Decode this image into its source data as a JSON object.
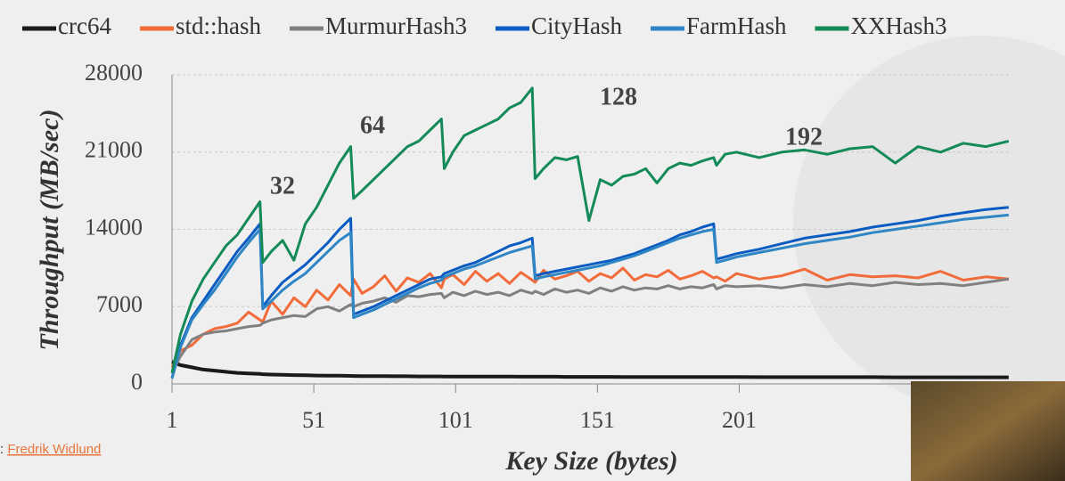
{
  "chart_data": {
    "type": "line",
    "x_label": "Key Size (bytes)",
    "y_label": "Throughput (MB/sec)",
    "xlim": [
      1,
      297
    ],
    "xticks": [
      1,
      51,
      101,
      151,
      201
    ],
    "ylim": [
      0,
      28000
    ],
    "yticks": [
      0,
      7000,
      14000,
      21000,
      28000
    ],
    "grid": true,
    "legend": "top",
    "annotations": [
      "32",
      "64",
      "128",
      "192"
    ],
    "x": [
      1,
      4,
      8,
      12,
      16,
      20,
      24,
      28,
      32,
      33,
      36,
      40,
      44,
      48,
      52,
      56,
      60,
      64,
      65,
      68,
      72,
      76,
      80,
      84,
      88,
      92,
      96,
      97,
      100,
      104,
      108,
      112,
      116,
      120,
      124,
      128,
      129,
      132,
      136,
      140,
      144,
      148,
      152,
      156,
      160,
      164,
      168,
      172,
      176,
      180,
      184,
      188,
      192,
      193,
      196,
      200,
      208,
      216,
      224,
      232,
      240,
      248,
      256,
      264,
      272,
      280,
      288,
      296
    ],
    "series": [
      {
        "name": "crc64",
        "color": "#1a1a1a",
        "values": [
          2000,
          1700,
          1500,
          1300,
          1200,
          1100,
          1000,
          950,
          900,
          880,
          850,
          820,
          800,
          780,
          760,
          750,
          740,
          730,
          720,
          710,
          700,
          700,
          690,
          690,
          680,
          680,
          680,
          670,
          670,
          670,
          660,
          660,
          660,
          660,
          650,
          650,
          650,
          650,
          650,
          640,
          640,
          640,
          640,
          640,
          630,
          630,
          630,
          630,
          630,
          630,
          620,
          620,
          620,
          620,
          620,
          620,
          610,
          610,
          610,
          610,
          610,
          610,
          600,
          600,
          600,
          600,
          600,
          600
        ]
      },
      {
        "name": "std::hash",
        "color": "#f26b3a",
        "values": [
          1500,
          3000,
          3500,
          4500,
          5000,
          5200,
          5500,
          6500,
          5800,
          5600,
          7500,
          6300,
          7800,
          7000,
          8500,
          7600,
          9000,
          8000,
          9500,
          8200,
          8800,
          9800,
          8400,
          9600,
          9200,
          10000,
          8700,
          9500,
          9900,
          9000,
          10200,
          9300,
          10000,
          9100,
          10100,
          9400,
          9200,
          10300,
          9500,
          9800,
          10200,
          9300,
          10000,
          9600,
          10500,
          9400,
          9900,
          9700,
          10300,
          9500,
          9800,
          10200,
          9600,
          9700,
          9300,
          10000,
          9500,
          9800,
          10400,
          9400,
          9900,
          9700,
          9800,
          9600,
          10200,
          9400,
          9700,
          9500
        ]
      },
      {
        "name": "MurmurHash3",
        "color": "#808080",
        "values": [
          1000,
          2500,
          4000,
          4500,
          4700,
          4800,
          5000,
          5200,
          5300,
          5500,
          5800,
          6000,
          6200,
          6100,
          6800,
          7000,
          6600,
          7200,
          7000,
          7300,
          7500,
          7800,
          7400,
          8000,
          7900,
          8100,
          8200,
          7800,
          8300,
          8000,
          8400,
          8100,
          8300,
          8000,
          8500,
          8200,
          8400,
          8100,
          8600,
          8300,
          8500,
          8200,
          8700,
          8400,
          8800,
          8500,
          8700,
          8600,
          8900,
          8600,
          8800,
          8700,
          9000,
          8600,
          8900,
          8800,
          8900,
          8700,
          9000,
          8800,
          9100,
          8900,
          9200,
          9000,
          9100,
          8900,
          9200,
          9500
        ]
      },
      {
        "name": "CityHash",
        "color": "#0a5cc2",
        "values": [
          500,
          3500,
          6000,
          7500,
          9000,
          10500,
          12000,
          13200,
          14500,
          7000,
          8000,
          9200,
          10000,
          10800,
          11800,
          12800,
          14000,
          15000,
          6300,
          6600,
          7000,
          7500,
          8000,
          8500,
          9000,
          9500,
          9700,
          10000,
          10300,
          10700,
          11000,
          11500,
          12000,
          12500,
          12800,
          13200,
          9800,
          10000,
          10200,
          10400,
          10600,
          10800,
          11000,
          11200,
          11500,
          11800,
          12200,
          12600,
          13000,
          13500,
          13800,
          14200,
          14500,
          11300,
          11500,
          11800,
          12200,
          12700,
          13200,
          13500,
          13800,
          14200,
          14500,
          14800,
          15200,
          15500,
          15800,
          16000
        ]
      },
      {
        "name": "FarmHash",
        "color": "#2f86c4",
        "values": [
          500,
          3300,
          5800,
          7200,
          8500,
          10000,
          11500,
          12800,
          14000,
          6800,
          7500,
          8500,
          9300,
          10000,
          11000,
          12000,
          13000,
          13700,
          6000,
          6300,
          6700,
          7200,
          7700,
          8200,
          8700,
          9100,
          9400,
          9700,
          10000,
          10400,
          10700,
          11100,
          11500,
          11900,
          12200,
          12500,
          9500,
          9700,
          9900,
          10100,
          10300,
          10500,
          10700,
          11000,
          11300,
          11600,
          12000,
          12400,
          12800,
          13200,
          13500,
          13800,
          14000,
          11000,
          11200,
          11500,
          11900,
          12300,
          12700,
          13000,
          13300,
          13700,
          14000,
          14300,
          14600,
          14900,
          15100,
          15300
        ]
      },
      {
        "name": "XXHash3",
        "color": "#138a57",
        "values": [
          1000,
          4500,
          7500,
          9500,
          11000,
          12500,
          13500,
          15000,
          16500,
          11000,
          12000,
          13000,
          11200,
          14500,
          16000,
          18000,
          20000,
          21500,
          16800,
          17500,
          18500,
          19500,
          20500,
          21500,
          22000,
          23000,
          24000,
          19500,
          21000,
          22500,
          23000,
          23500,
          24000,
          25000,
          25500,
          26800,
          18600,
          19500,
          20500,
          20300,
          20600,
          14800,
          18500,
          18000,
          18800,
          19000,
          19500,
          18200,
          19500,
          20000,
          19800,
          20200,
          20500,
          19800,
          20800,
          21000,
          20500,
          21000,
          21200,
          20800,
          21300,
          21500,
          20000,
          21500,
          21000,
          21800,
          21500,
          22000
        ]
      }
    ]
  },
  "caption": {
    "prefix": ":",
    "link": "Fredrik Widlund"
  }
}
